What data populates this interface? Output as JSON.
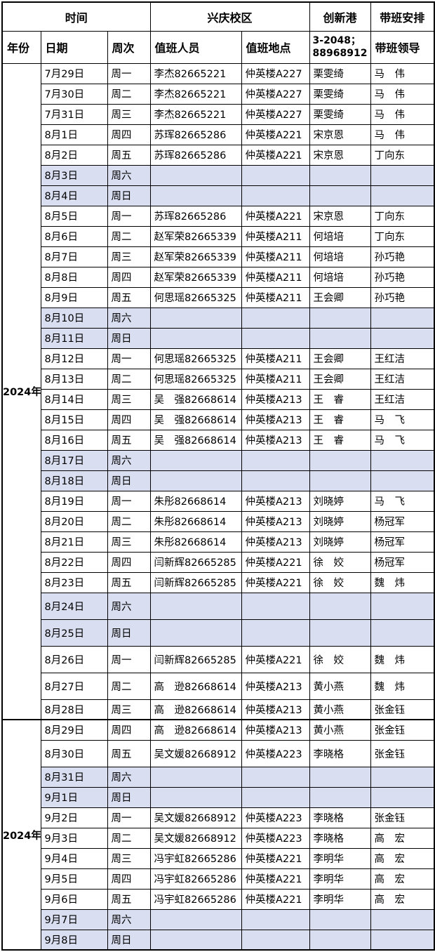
{
  "colors": {
    "weekend_row_bg": "#D9DEF1",
    "border": "#000000",
    "table_bg": "#FFFFFF",
    "text": "#000000"
  },
  "header": {
    "group": {
      "time": "时间",
      "xingqing_campus": "兴庆校区",
      "innovation_harbor": "创新港",
      "banding_arrangement": "带班安排"
    },
    "columns": {
      "year": "年份",
      "date": "日期",
      "week": "周次",
      "duty_person": "值班人员",
      "duty_place": "值班地点",
      "innovation_contact": "3-2048；88968912",
      "duty_leader": "带班领导"
    }
  },
  "sections": [
    {
      "year": "2024年",
      "rows": [
        {
          "date": "7月29日",
          "week": "周一",
          "person": "李杰82665221",
          "place": "仲英楼A227",
          "port": "栗雯绮",
          "leader": "马　伟"
        },
        {
          "date": "7月30日",
          "week": "周二",
          "person": "李杰82665221",
          "place": "仲英楼A227",
          "port": "栗雯绮",
          "leader": "马　伟"
        },
        {
          "date": "7月31日",
          "week": "周三",
          "person": "李杰82665221",
          "place": "仲英楼A227",
          "port": "栗雯绮",
          "leader": "马　伟"
        },
        {
          "date": "8月1日",
          "week": "周四",
          "person": "苏珲82665286",
          "place": "仲英楼A221",
          "port": "宋京恩",
          "leader": "马　伟"
        },
        {
          "date": "8月2日",
          "week": "周五",
          "person": "苏珲82665286",
          "place": "仲英楼A221",
          "port": "宋京恩",
          "leader": "丁向东"
        },
        {
          "date": "8月3日",
          "week": "周六",
          "person": "",
          "place": "",
          "port": "",
          "leader": ""
        },
        {
          "date": "8月4日",
          "week": "周日",
          "person": "",
          "place": "",
          "port": "",
          "leader": ""
        },
        {
          "date": "8月5日",
          "week": "周一",
          "person": "苏珲82665286",
          "place": "仲英楼A221",
          "port": "宋京恩",
          "leader": "丁向东"
        },
        {
          "date": "8月6日",
          "week": "周二",
          "person": "赵军荣82665339",
          "place": "仲英楼A211",
          "port": "何培培",
          "leader": "丁向东"
        },
        {
          "date": "8月7日",
          "week": "周三",
          "person": "赵军荣82665339",
          "place": "仲英楼A211",
          "port": "何培培",
          "leader": "孙巧艳"
        },
        {
          "date": "8月8日",
          "week": "周四",
          "person": "赵军荣82665339",
          "place": "仲英楼A211",
          "port": "何培培",
          "leader": "孙巧艳"
        },
        {
          "date": "8月9日",
          "week": "周五",
          "person": "何思瑶82665325",
          "place": "仲英楼A211",
          "port": "王会卿",
          "leader": "孙巧艳"
        },
        {
          "date": "8月10日",
          "week": "周六",
          "person": "",
          "place": "",
          "port": "",
          "leader": ""
        },
        {
          "date": "8月11日",
          "week": "周日",
          "person": "",
          "place": "",
          "port": "",
          "leader": ""
        },
        {
          "date": "8月12日",
          "week": "周一",
          "person": "何思瑶82665325",
          "place": "仲英楼A211",
          "port": "王会卿",
          "leader": "王红洁"
        },
        {
          "date": "8月13日",
          "week": "周二",
          "person": "何思瑶82665325",
          "place": "仲英楼A211",
          "port": "王会卿",
          "leader": "王红洁"
        },
        {
          "date": "8月14日",
          "week": "周三",
          "person": "吴　强82668614",
          "place": "仲英楼A213",
          "port": "王　睿",
          "leader": "王红洁"
        },
        {
          "date": "8月15日",
          "week": "周四",
          "person": "吴　强82668614",
          "place": "仲英楼A213",
          "port": "王　睿",
          "leader": "马　飞"
        },
        {
          "date": "8月16日",
          "week": "周五",
          "person": "吴　强82668614",
          "place": "仲英楼A213",
          "port": "王　睿",
          "leader": "马　飞"
        },
        {
          "date": "8月17日",
          "week": "周六",
          "person": "",
          "place": "",
          "port": "",
          "leader": ""
        },
        {
          "date": "8月18日",
          "week": "周日",
          "person": "",
          "place": "",
          "port": "",
          "leader": ""
        },
        {
          "date": "8月19日",
          "week": "周一",
          "person": "朱彤82668614",
          "place": "仲英楼A213",
          "port": "刘晓婷",
          "leader": "马　飞"
        },
        {
          "date": "8月20日",
          "week": "周二",
          "person": "朱彤82668614",
          "place": "仲英楼A213",
          "port": "刘晓婷",
          "leader": "杨冠军"
        },
        {
          "date": "8月21日",
          "week": "周三",
          "person": "朱彤82668614",
          "place": "仲英楼A213",
          "port": "刘晓婷",
          "leader": "杨冠军"
        },
        {
          "date": "8月22日",
          "week": "周四",
          "person": "闫新辉82665285",
          "place": "仲英楼A221",
          "port": "徐　姣",
          "leader": "杨冠军"
        },
        {
          "date": "8月23日",
          "week": "周五",
          "person": "闫新辉82665285",
          "place": "仲英楼A221",
          "port": "徐　姣",
          "leader": "魏　炜"
        },
        {
          "date": "8月24日",
          "week": "周六",
          "person": "",
          "place": "",
          "port": "",
          "leader": ""
        },
        {
          "date": "8月25日",
          "week": "周日",
          "person": "",
          "place": "",
          "port": "",
          "leader": ""
        },
        {
          "date": "8月26日",
          "week": "周一",
          "person": "闫新辉82665285",
          "place": "仲英楼A221",
          "port": "徐　姣",
          "leader": "魏　炜"
        },
        {
          "date": "8月27日",
          "week": "周二",
          "person": "高　逊82668614",
          "place": "仲英楼A213",
          "port": "黄小燕",
          "leader": "魏　炜"
        },
        {
          "date": "8月28日",
          "week": "周三",
          "person": "高　逊82668614",
          "place": "仲英楼A213",
          "port": "黄小燕",
          "leader": "张金钰"
        }
      ]
    },
    {
      "year": "2024年",
      "rows": [
        {
          "date": "8月29日",
          "week": "周四",
          "person": "高　逊82668614",
          "place": "仲英楼A213",
          "port": "黄小燕",
          "leader": "张金钰"
        },
        {
          "date": "8月30日",
          "week": "周五",
          "person": "吴文媛82668912",
          "place": "仲英楼A223",
          "port": "李晓格",
          "leader": "张金钰"
        },
        {
          "date": "8月31日",
          "week": "周六",
          "person": "",
          "place": "",
          "port": "",
          "leader": ""
        },
        {
          "date": "9月1日",
          "week": "周日",
          "person": "",
          "place": "",
          "port": "",
          "leader": ""
        },
        {
          "date": "9月2日",
          "week": "周一",
          "person": "吴文媛82668912",
          "place": "仲英楼A223",
          "port": "李晓格",
          "leader": "张金钰"
        },
        {
          "date": "9月3日",
          "week": "周二",
          "person": "吴文媛82668912",
          "place": "仲英楼A223",
          "port": "李晓格",
          "leader": "高　宏"
        },
        {
          "date": "9月4日",
          "week": "周三",
          "person": "冯宇虹82665286",
          "place": "仲英楼A221",
          "port": "李明华",
          "leader": "高　宏"
        },
        {
          "date": "9月5日",
          "week": "周四",
          "person": "冯宇虹82665286",
          "place": "仲英楼A221",
          "port": "李明华",
          "leader": "高　宏"
        },
        {
          "date": "9月6日",
          "week": "周五",
          "person": "冯宇虹82665286",
          "place": "仲英楼A221",
          "port": "李明华",
          "leader": "高　宏"
        },
        {
          "date": "9月7日",
          "week": "周六",
          "person": "",
          "place": "",
          "port": "",
          "leader": ""
        },
        {
          "date": "9月8日",
          "week": "周日",
          "person": "",
          "place": "",
          "port": "",
          "leader": ""
        }
      ]
    }
  ]
}
